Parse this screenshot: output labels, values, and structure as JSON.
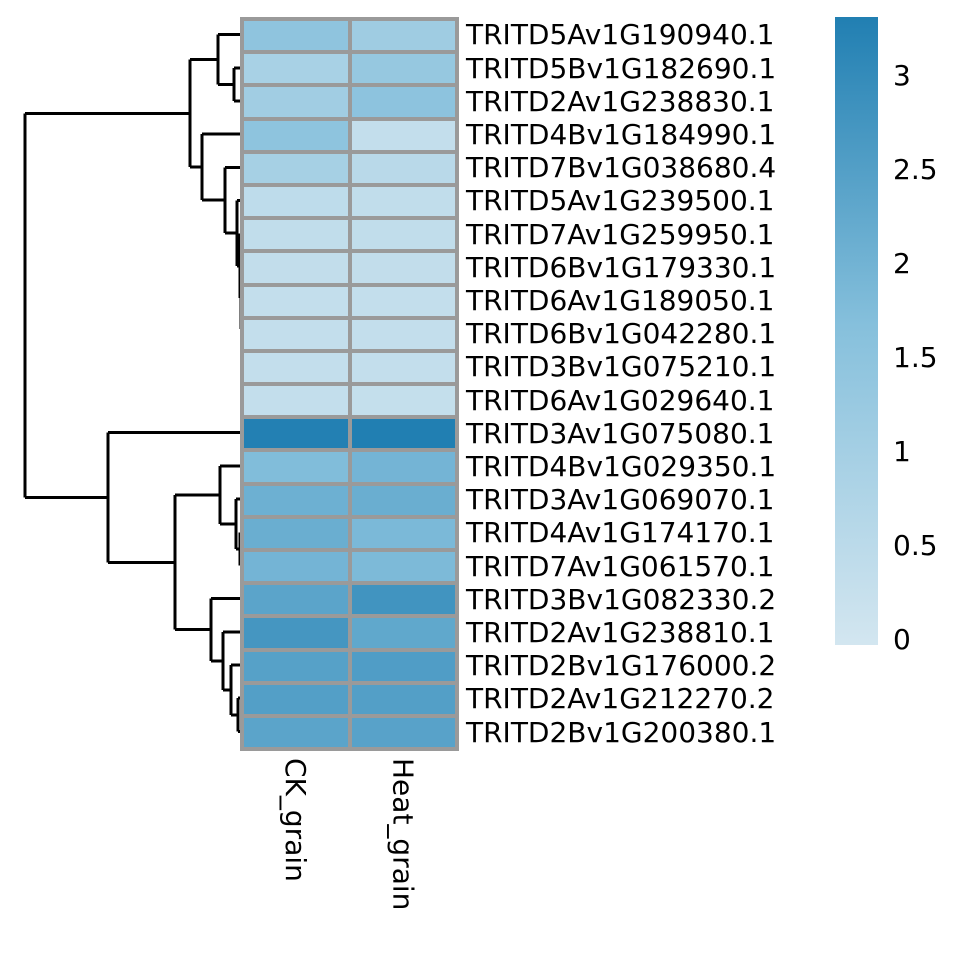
{
  "chart_data": {
    "type": "heatmap",
    "title": "",
    "columns": [
      "CK_grain",
      "Heat_grain"
    ],
    "rows": [
      "TRITD5Av1G190940.1",
      "TRITD5Bv1G182690.1",
      "TRITD2Av1G238830.1",
      "TRITD4Bv1G184990.1",
      "TRITD7Bv1G038680.4",
      "TRITD5Av1G239500.1",
      "TRITD7Av1G259950.1",
      "TRITD6Bv1G179330.1",
      "TRITD6Av1G189050.1",
      "TRITD6Bv1G042280.1",
      "TRITD3Bv1G075210.1",
      "TRITD6Av1G029640.1",
      "TRITD3Av1G075080.1",
      "TRITD4Bv1G029350.1",
      "TRITD3Av1G069070.1",
      "TRITD4Av1G174170.1",
      "TRITD7Av1G061570.1",
      "TRITD3Bv1G082330.2",
      "TRITD2Av1G238810.1",
      "TRITD2Bv1G176000.2",
      "TRITD2Av1G212270.2",
      "TRITD2Bv1G200380.1"
    ],
    "values": [
      [
        1.49,
        1.14
      ],
      [
        0.93,
        1.34
      ],
      [
        1.1,
        1.53
      ],
      [
        1.5,
        0.35
      ],
      [
        0.99,
        0.56
      ],
      [
        0.45,
        0.4
      ],
      [
        0.4,
        0.4
      ],
      [
        0.38,
        0.38
      ],
      [
        0.36,
        0.36
      ],
      [
        0.36,
        0.36
      ],
      [
        0.36,
        0.36
      ],
      [
        0.36,
        0.32
      ],
      [
        3.28,
        3.31
      ],
      [
        1.76,
        1.97
      ],
      [
        2.08,
        2.13
      ],
      [
        2.13,
        1.85
      ],
      [
        1.97,
        1.83
      ],
      [
        2.37,
        2.79
      ],
      [
        2.73,
        2.29
      ],
      [
        2.46,
        2.55
      ],
      [
        2.5,
        2.5
      ],
      [
        2.37,
        2.42
      ]
    ],
    "color_scale": {
      "min": 0,
      "max": 3.31,
      "stops": [
        {
          "value": 0,
          "color": "#d3e6f0"
        },
        {
          "value": 1.68,
          "color": "#86c0dc"
        },
        {
          "value": 3.36,
          "color": "#1e7db1"
        }
      ]
    },
    "legend_ticks": [
      "3",
      "2.5",
      "2",
      "1.5",
      "1",
      "0.5",
      "0"
    ],
    "legend_tick_values": [
      3,
      2.5,
      2,
      1.5,
      1,
      0.5,
      0
    ],
    "row_dendrogram_segments": [
      [
        218,
        34.6,
        244,
        34.6
      ],
      [
        234,
        67.8,
        244,
        67.8
      ],
      [
        234,
        100.9,
        244,
        100.9
      ],
      [
        202,
        134.1,
        244,
        134.1
      ],
      [
        225,
        167.3,
        244,
        167.3
      ],
      [
        237,
        200.5,
        244,
        200.5
      ],
      [
        240,
        233.7,
        244,
        233.7
      ],
      [
        241,
        266.8,
        244,
        266.8
      ],
      [
        241.5,
        300.0,
        244,
        300.0
      ],
      [
        242,
        333.2,
        244,
        333.2
      ],
      [
        242,
        366.4,
        244,
        366.4
      ],
      [
        242,
        399.5,
        244,
        399.5
      ],
      [
        108,
        432.7,
        244,
        432.7
      ],
      [
        220,
        465.9,
        244,
        465.9
      ],
      [
        236,
        499.1,
        244,
        499.1
      ],
      [
        240,
        532.3,
        244,
        532.3
      ],
      [
        240,
        565.4,
        244,
        565.4
      ],
      [
        211,
        598.6,
        244,
        598.6
      ],
      [
        223,
        631.8,
        244,
        631.8
      ],
      [
        231,
        665.0,
        244,
        665.0
      ],
      [
        238,
        698.2,
        244,
        698.2
      ],
      [
        238,
        731.3,
        244,
        731.3
      ],
      [
        234,
        67.8,
        234,
        100.9
      ],
      [
        218,
        34.6,
        218,
        84.4
      ],
      [
        218,
        84.4,
        234,
        84.4
      ],
      [
        242,
        366.4,
        242,
        399.5
      ],
      [
        242,
        333.2,
        242,
        383.0
      ],
      [
        241.5,
        300.0,
        241.5,
        358.1
      ],
      [
        241.5,
        358.1,
        242,
        358.1
      ],
      [
        241,
        266.8,
        241,
        329.0
      ],
      [
        241,
        329.0,
        241.5,
        329.0
      ],
      [
        240,
        233.7,
        240,
        297.9
      ],
      [
        240,
        297.9,
        241,
        297.9
      ],
      [
        237,
        200.5,
        237,
        265.8
      ],
      [
        237,
        265.8,
        240,
        265.8
      ],
      [
        225,
        167.3,
        225,
        233.2
      ],
      [
        225,
        233.2,
        237,
        233.2
      ],
      [
        202,
        134.1,
        202,
        200.2
      ],
      [
        202,
        200.2,
        225,
        200.2
      ],
      [
        190,
        59.5,
        190,
        167.2
      ],
      [
        190,
        59.5,
        218,
        59.5
      ],
      [
        190,
        167.2,
        202,
        167.2
      ],
      [
        240,
        532.3,
        240,
        565.4
      ],
      [
        236,
        499.1,
        236,
        548.9
      ],
      [
        236,
        548.9,
        240,
        548.9
      ],
      [
        220,
        465.9,
        220,
        524.0
      ],
      [
        220,
        524.0,
        236,
        524.0
      ],
      [
        238,
        698.2,
        238,
        731.3
      ],
      [
        231,
        665.0,
        231,
        714.8
      ],
      [
        231,
        714.8,
        238,
        714.8
      ],
      [
        223,
        631.8,
        223,
        689.9
      ],
      [
        223,
        689.9,
        231,
        689.9
      ],
      [
        211,
        598.6,
        211,
        660.8
      ],
      [
        211,
        660.8,
        223,
        660.8
      ],
      [
        175,
        494.9,
        175,
        629.7
      ],
      [
        175,
        494.9,
        220,
        494.9
      ],
      [
        175,
        629.7,
        211,
        629.7
      ],
      [
        108,
        432.7,
        108,
        562.3
      ],
      [
        108,
        562.3,
        175,
        562.3
      ],
      [
        25,
        113.3,
        25,
        497.5
      ],
      [
        25,
        113.3,
        190,
        113.3
      ],
      [
        25,
        497.5,
        108,
        497.5
      ]
    ],
    "layout_hints": {
      "legend_position": "right",
      "dendrogram_position": "left",
      "grid_line_color": "#9a9a9a",
      "dendrogram_line_color": "#000000",
      "background": "#ffffff"
    }
  }
}
